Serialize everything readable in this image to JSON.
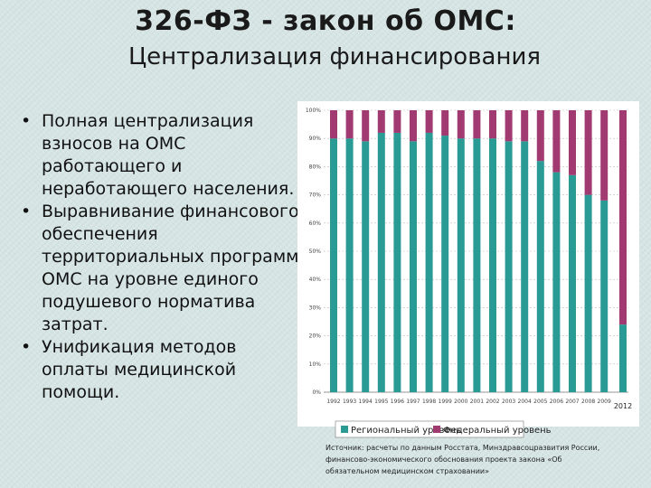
{
  "slide": {
    "title": "326-ФЗ - закон об ОМС:",
    "subtitle": "Централизация финансирования",
    "bullets": [
      "Полная централизация взносов на ОМС работающего и неработающего населения.",
      "Выравнивание финансового обеспечения территориальных программ ОМС на уровне единого подушевого норматива затрат.",
      "Унификация методов оплаты медицинской помощи."
    ],
    "bullet_symbol": "•",
    "source": "Источник: расчеты по данным Росстата, Минздравсоцразвития России, финансово-экономического обоснования проекта закона «Об обязательном медицинском страховании»"
  },
  "colors": {
    "regional": "#2a9a94",
    "federal": "#a03a70",
    "grid": "#b9b9b9",
    "background": "#d6e4e4"
  },
  "chart_data": {
    "type": "bar",
    "stacked": "percent",
    "categories": [
      "1992",
      "1993",
      "1994",
      "1995",
      "1996",
      "1997",
      "1998",
      "1999",
      "2000",
      "2001",
      "2002",
      "2003",
      "2004",
      "2005",
      "2006",
      "2007",
      "2008",
      "2009",
      "2012"
    ],
    "gap_before_last": true,
    "series": [
      {
        "name": "Региональный уровень",
        "color": "#2a9a94",
        "values": [
          90,
          90,
          89,
          92,
          92,
          89,
          92,
          91,
          90,
          90,
          90,
          89,
          89,
          82,
          78,
          77,
          70,
          68,
          24
        ]
      },
      {
        "name": "Федеральный уровень",
        "color": "#a03a70",
        "values": [
          10,
          10,
          11,
          8,
          8,
          11,
          8,
          9,
          10,
          10,
          10,
          11,
          11,
          18,
          22,
          23,
          30,
          32,
          76
        ]
      }
    ],
    "y_ticks": [
      "0%",
      "10%",
      "20%",
      "30%",
      "40%",
      "50%",
      "60%",
      "70%",
      "80%",
      "90%",
      "100%"
    ],
    "ylim": [
      0,
      100
    ],
    "grid": true,
    "legend_position": "bottom"
  }
}
